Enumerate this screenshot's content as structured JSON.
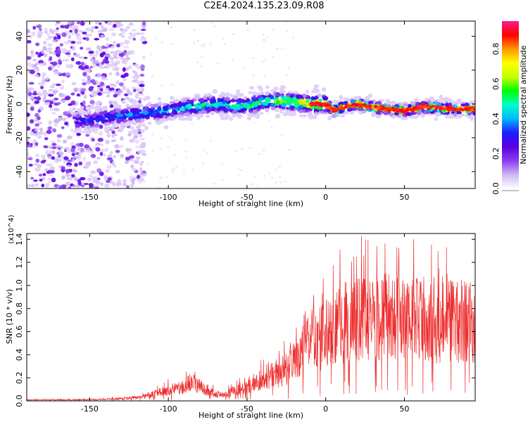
{
  "title": "C2E4.2024.135.23.09.R08",
  "chart_data": [
    {
      "type": "heatmap",
      "title": "C2E4.2024.135.23.09.R08",
      "xlabel": "Height of straight line (km)",
      "ylabel": "Frequency (Hz)",
      "xlim": [
        -190,
        95
      ],
      "ylim": [
        -50,
        49
      ],
      "x_ticks": [
        -150,
        -100,
        -50,
        0,
        50
      ],
      "y_ticks": [
        -40,
        -20,
        0,
        20,
        40
      ],
      "colorbar": {
        "label": "Normalized spectral amplitude",
        "range": [
          0,
          0.96
        ],
        "ticks": [
          0.0,
          0.2,
          0.4,
          0.6,
          0.8
        ],
        "colormap": [
          "#ffffff",
          "#cdb6f4",
          "#8a3cf0",
          "#5a00e0",
          "#1d1dff",
          "#00b7ff",
          "#00ffc8",
          "#00ff00",
          "#c8ff00",
          "#ffff00",
          "#ff9600",
          "#ff0000",
          "#ff1a8c"
        ]
      },
      "ridge": {
        "x": [
          -150,
          -140,
          -130,
          -120,
          -110,
          -100,
          -90,
          -80,
          -70,
          -60,
          -50,
          -40,
          -30,
          -20,
          -10,
          0,
          5,
          10,
          20,
          30,
          40,
          50,
          60,
          70,
          80,
          90
        ],
        "y": [
          -10,
          -8,
          -7,
          -6,
          -5,
          -4,
          -2,
          -1,
          0,
          -1,
          -1,
          1,
          2,
          1,
          0,
          0,
          -4,
          -2,
          0,
          -2,
          -3,
          -4,
          -2,
          -2,
          -3,
          -3
        ],
        "amplitude": [
          0.35,
          0.35,
          0.38,
          0.4,
          0.42,
          0.45,
          0.45,
          0.5,
          0.5,
          0.5,
          0.55,
          0.55,
          0.6,
          0.7,
          0.8,
          0.85,
          0.85,
          0.8,
          0.85,
          0.85,
          0.85,
          0.9,
          0.85,
          0.85,
          0.85,
          0.85
        ]
      }
    },
    {
      "type": "line",
      "xlabel": "Height of straight line (km)",
      "ylabel": "SNR (10 * v/v)",
      "multiplier_label": "(x10^4)",
      "xlim": [
        -190,
        95
      ],
      "ylim": [
        0,
        1.45
      ],
      "x_ticks": [
        -150,
        -100,
        -50,
        0,
        50
      ],
      "y_ticks": [
        0.0,
        0.2,
        0.4,
        0.6,
        0.8,
        1.0,
        1.2,
        1.4
      ],
      "color": "#ee2b2b",
      "envelope": {
        "x": [
          -190,
          -160,
          -140,
          -120,
          -110,
          -100,
          -90,
          -85,
          -80,
          -75,
          -70,
          -65,
          -60,
          -50,
          -40,
          -30,
          -20,
          -10,
          0,
          10,
          20,
          30,
          40,
          50,
          60,
          70,
          80,
          90,
          95
        ],
        "y": [
          0.01,
          0.01,
          0.015,
          0.03,
          0.06,
          0.1,
          0.12,
          0.18,
          0.14,
          0.1,
          0.06,
          0.05,
          0.08,
          0.14,
          0.2,
          0.25,
          0.35,
          0.55,
          0.6,
          0.7,
          0.75,
          0.72,
          0.78,
          0.72,
          0.75,
          0.72,
          0.75,
          0.72,
          0.72
        ]
      }
    }
  ]
}
